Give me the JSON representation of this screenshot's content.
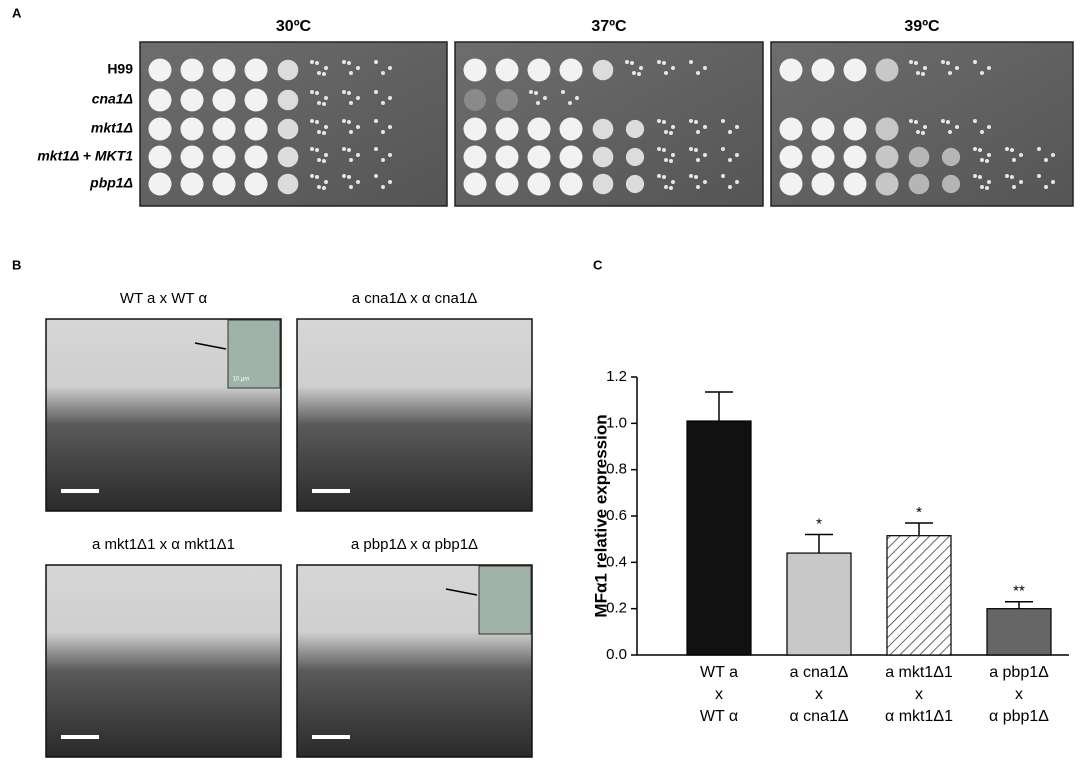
{
  "panel_a": {
    "label": "A",
    "temperatures": [
      "30ºC",
      "37ºC",
      "39ºC"
    ],
    "strains": [
      "H99",
      "cna1Δ",
      "mkt1Δ",
      "mkt1Δ + MKT1",
      "pbp1Δ"
    ]
  },
  "panel_b": {
    "label": "B",
    "images": [
      {
        "title": "WT a x WT α",
        "inset_scale": "10 µm"
      },
      {
        "title": "a cna1Δ x α cna1Δ"
      },
      {
        "title": "a mkt1Δ1 x α mkt1Δ1"
      },
      {
        "title": "a pbp1Δ x α pbp1Δ"
      }
    ]
  },
  "chart_data": {
    "type": "bar",
    "panel_label": "C",
    "y_label": "MFα1 relative expression",
    "categories": [
      [
        "WT a",
        "x",
        "WT α"
      ],
      [
        "a cna1Δ",
        "x",
        "α cna1Δ"
      ],
      [
        "a mkt1Δ1",
        "x",
        "α mkt1Δ1"
      ],
      [
        "a pbp1Δ",
        "x",
        "α pbp1Δ"
      ]
    ],
    "values": [
      1.01,
      0.44,
      0.515,
      0.2
    ],
    "errors": [
      0.125,
      0.08,
      0.055,
      0.03
    ],
    "significance": [
      null,
      "*",
      "*",
      "**"
    ],
    "colors": [
      "#111111",
      "#c8c8c8",
      "#ffffff",
      "#666666"
    ],
    "hatched": [
      false,
      false,
      true,
      false
    ],
    "ylim": [
      0,
      1.2
    ],
    "yticks": [
      {
        "value": 0,
        "label": "0.0"
      },
      0.2,
      0.4,
      0.6,
      0.8,
      {
        "value": 1,
        "label": "1.0"
      },
      1.2
    ]
  }
}
